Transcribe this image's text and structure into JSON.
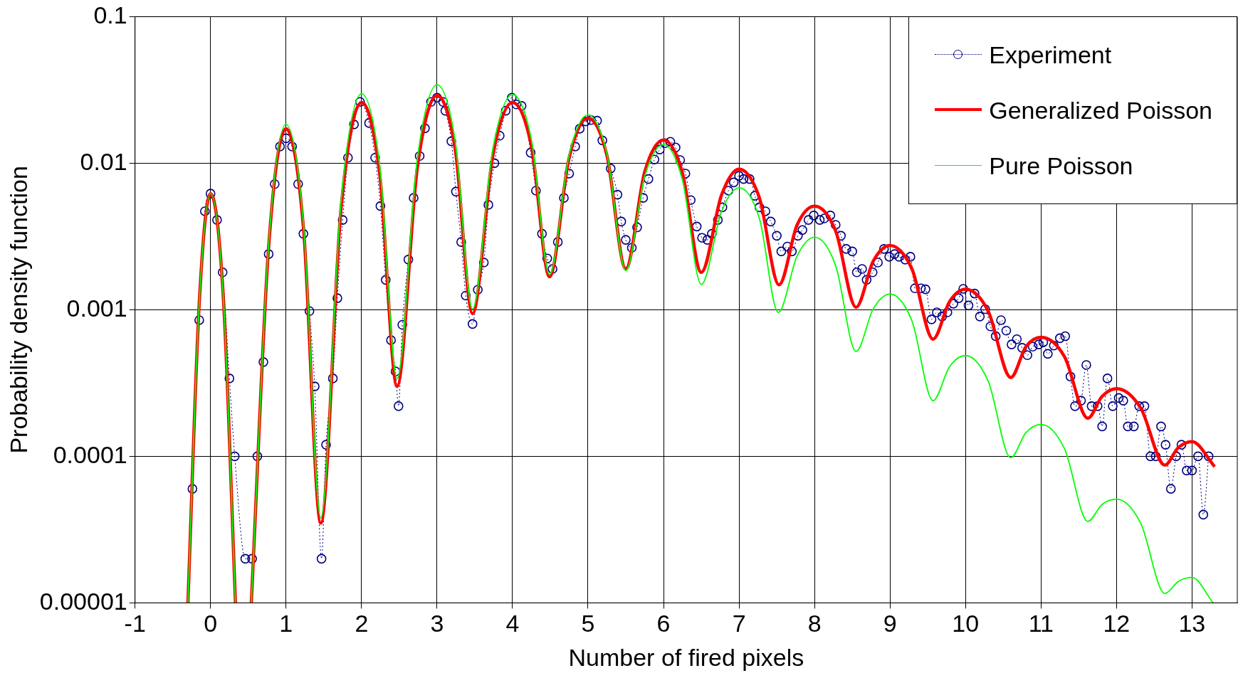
{
  "chart_data": {
    "type": "line",
    "xlabel": "Number of fired pixels",
    "ylabel": "Probability density function",
    "log": "y",
    "grid": true,
    "legend": "top right",
    "xlim": [
      -1,
      13.6
    ],
    "xticks": [
      -1,
      0,
      1,
      2,
      3,
      4,
      5,
      6,
      7,
      8,
      9,
      10,
      11,
      12,
      13
    ],
    "ylim": [
      1e-05,
      0.1
    ],
    "yticks": [
      {
        "value": 1e-05,
        "label": "0.00001"
      },
      0.0001,
      0.001,
      0.01,
      0.1
    ],
    "series": [
      {
        "name": "Experiment",
        "color": "#000080",
        "marker": "circle",
        "line_style": "dotted",
        "x": [
          -0.24,
          -0.15,
          -0.075,
          0,
          0.086,
          0.16,
          0.25,
          0.32,
          0.46,
          0.55,
          0.62,
          0.7,
          0.77,
          0.85,
          0.92,
          1,
          1.08,
          1.16,
          1.23,
          1.31,
          1.38,
          1.47,
          1.53,
          1.62,
          1.68,
          1.75,
          1.82,
          1.9,
          1.98,
          2.1,
          2.18,
          2.25,
          2.32,
          2.39,
          2.45,
          2.49,
          2.54,
          2.62,
          2.69,
          2.77,
          2.84,
          2.92,
          3,
          3.08,
          3.11,
          3.19,
          3.25,
          3.32,
          3.38,
          3.47,
          3.54,
          3.62,
          3.68,
          3.76,
          3.83,
          3.91,
          3.99,
          4.05,
          4.12,
          4.24,
          4.31,
          4.39,
          4.46,
          4.53,
          4.6,
          4.68,
          4.75,
          4.83,
          4.89,
          4.97,
          5.04,
          5.12,
          5.19,
          5.3,
          5.39,
          5.44,
          5.5,
          5.58,
          5.65,
          5.73,
          5.8,
          5.88,
          5.95,
          6.02,
          6.09,
          6.16,
          6.22,
          6.29,
          6.36,
          6.44,
          6.51,
          6.58,
          6.64,
          6.72,
          6.78,
          6.86,
          6.93,
          7,
          7.06,
          7.14,
          7.21,
          7.27,
          7.35,
          7.42,
          7.5,
          7.56,
          7.64,
          7.7,
          7.78,
          7.84,
          7.92,
          7.99,
          8.07,
          8.13,
          8.21,
          8.28,
          8.35,
          8.42,
          8.5,
          8.56,
          8.63,
          8.69,
          8.77,
          8.84,
          8.92,
          8.99,
          9.06,
          9.12,
          9.2,
          9.27,
          9.33,
          9.41,
          9.47,
          9.55,
          9.62,
          9.69,
          9.76,
          9.84,
          9.91,
          9.97,
          10.04,
          10.12,
          10.19,
          10.26,
          10.33,
          10.4,
          10.47,
          10.54,
          10.61,
          10.68,
          10.75,
          10.82,
          10.89,
          10.97,
          11.03,
          11.09,
          11.17,
          11.25,
          11.32,
          11.39,
          11.45,
          11.53,
          11.6,
          11.67,
          11.75,
          11.81,
          11.88,
          11.95,
          12.03,
          12.09,
          12.15,
          12.23,
          12.3,
          12.37,
          12.45,
          12.52,
          12.59,
          12.65,
          12.72,
          12.79,
          12.86,
          12.93,
          13,
          13.08,
          13.15,
          13.22
        ],
        "values": [
          6e-05,
          0.00085,
          0.0047,
          0.0062,
          0.0041,
          0.0018,
          0.00034,
          0.0001,
          2e-05,
          2e-05,
          0.0001,
          0.00044,
          0.0024,
          0.0072,
          0.013,
          0.0148,
          0.013,
          0.0072,
          0.0033,
          0.00098,
          0.0003,
          2e-05,
          0.00012,
          0.00034,
          0.0012,
          0.0041,
          0.0109,
          0.0184,
          0.0262,
          0.0188,
          0.0109,
          0.0051,
          0.0016,
          0.00062,
          0.00038,
          0.00022,
          0.00079,
          0.0022,
          0.0058,
          0.0112,
          0.0173,
          0.0262,
          0.028,
          0.0262,
          0.0228,
          0.0141,
          0.0064,
          0.0029,
          0.00125,
          0.0008,
          0.00137,
          0.0021,
          0.0052,
          0.01,
          0.0154,
          0.0228,
          0.028,
          0.0252,
          0.0246,
          0.0118,
          0.0065,
          0.0033,
          0.00224,
          0.0019,
          0.0029,
          0.0058,
          0.0085,
          0.013,
          0.0172,
          0.0193,
          0.0197,
          0.0195,
          0.0143,
          0.0092,
          0.0061,
          0.004,
          0.003,
          0.00265,
          0.00365,
          0.0058,
          0.0078,
          0.0106,
          0.0124,
          0.0137,
          0.014,
          0.0128,
          0.0105,
          0.0085,
          0.0056,
          0.0037,
          0.0031,
          0.003,
          0.0033,
          0.0041,
          0.005,
          0.0065,
          0.0074,
          0.0082,
          0.0078,
          0.0078,
          0.006,
          0.005,
          0.0047,
          0.004,
          0.0032,
          0.0025,
          0.0027,
          0.0025,
          0.0032,
          0.0035,
          0.0041,
          0.0044,
          0.0041,
          0.0042,
          0.0044,
          0.0038,
          0.0032,
          0.0026,
          0.0025,
          0.0018,
          0.0019,
          0.0016,
          0.0018,
          0.0021,
          0.0026,
          0.0023,
          0.0024,
          0.0023,
          0.0022,
          0.0023,
          0.0014,
          0.0014,
          0.00138,
          0.00086,
          0.00096,
          0.0009,
          0.00096,
          0.0011,
          0.0012,
          0.00139,
          0.00107,
          0.00129,
          0.0009,
          0.00101,
          0.00077,
          0.00066,
          0.00085,
          0.00072,
          0.00058,
          0.00063,
          0.00055,
          0.00049,
          0.00056,
          0.00058,
          0.0006,
          0.0005,
          0.00057,
          0.00064,
          0.00066,
          0.00035,
          0.00022,
          0.00024,
          0.00042,
          0.00022,
          0.00022,
          0.00016,
          0.00034,
          0.00022,
          0.00025,
          0.00024,
          0.00016,
          0.00016,
          0.00022,
          0.00022,
          0.0001,
          0.0001,
          0.00016,
          0.00012,
          6e-05,
          0.0001,
          0.00012,
          8e-05,
          8e-05,
          0.0001,
          4e-05,
          0.0001
        ]
      },
      {
        "name": "Generalized Poisson",
        "color": "#ff0000",
        "marker": "none",
        "line_style": "solid",
        "x": [
          -0.3,
          -0.15,
          0,
          0.17,
          0.33,
          0.43,
          0.54,
          0.77,
          1,
          1.23,
          1.46,
          1.73,
          2,
          2.24,
          2.47,
          2.74,
          3,
          3.24,
          3.47,
          3.74,
          4,
          4.25,
          4.49,
          4.75,
          5,
          5.25,
          5.5,
          5.75,
          6,
          6.25,
          6.5,
          6.77,
          7,
          7.27,
          7.53,
          7.77,
          8,
          8.28,
          8.55,
          8.78,
          9,
          9.29,
          9.57,
          9.79,
          10,
          10.3,
          10.6,
          10.8,
          11,
          11.31,
          11.62,
          11.81,
          12,
          12.32,
          12.64,
          12.82,
          13,
          13.3
        ],
        "values": [
          1e-05,
          0.0011,
          0.0062,
          0.0012,
          1e-05,
          null,
          1e-05,
          0.0027,
          0.0172,
          0.00366,
          3.5e-05,
          0.005,
          0.026,
          0.0085,
          0.0003,
          0.0094,
          0.029,
          0.0125,
          0.00094,
          0.0113,
          0.026,
          0.0131,
          0.00168,
          0.0109,
          0.0203,
          0.0113,
          0.0019,
          0.0087,
          0.0144,
          0.0086,
          0.0018,
          0.0061,
          0.0091,
          0.0058,
          0.00148,
          0.0038,
          0.0051,
          0.00345,
          0.00104,
          0.00216,
          0.00275,
          0.0019,
          0.00063,
          0.00114,
          0.00138,
          0.00098,
          0.000345,
          0.00056,
          0.00065,
          0.00048,
          0.000182,
          0.000257,
          0.00029,
          0.000214,
          8.7e-05,
          0.000115,
          0.000126,
          8.5e-05
        ]
      },
      {
        "name": "Pure Poisson",
        "color": "#00ff00",
        "marker": "none",
        "line_style": "solid",
        "x": [
          -0.3,
          -0.15,
          0,
          0.17,
          0.33,
          0.43,
          0.54,
          0.77,
          1,
          1.23,
          1.46,
          1.73,
          2,
          2.24,
          2.47,
          2.74,
          3,
          3.24,
          3.47,
          3.74,
          4,
          4.25,
          4.49,
          4.75,
          5,
          5.25,
          5.5,
          5.75,
          6,
          6.25,
          6.5,
          6.77,
          7,
          7.27,
          7.52,
          7.77,
          8,
          8.28,
          8.55,
          8.78,
          9,
          9.29,
          9.57,
          9.79,
          10,
          10.3,
          10.6,
          10.8,
          11,
          11.31,
          11.62,
          11.81,
          12,
          12.32,
          12.64,
          12.82,
          13,
          13.28
        ],
        "values": [
          1e-05,
          0.0011,
          0.0062,
          0.0012,
          1e-05,
          null,
          1e-05,
          0.0028,
          0.0184,
          0.0039,
          3.8e-05,
          0.0056,
          0.0298,
          0.0097,
          0.00034,
          0.0108,
          0.0343,
          0.0142,
          0.00101,
          0.0126,
          0.0294,
          0.0145,
          0.00174,
          0.0114,
          0.0214,
          0.0116,
          0.00185,
          0.0081,
          0.0134,
          0.0077,
          0.00149,
          0.0047,
          0.0068,
          0.0042,
          0.00096,
          0.00233,
          0.00313,
          0.002,
          0.00052,
          0.00102,
          0.00128,
          0.00084,
          0.00024,
          0.00041,
          0.000487,
          0.000326,
          9.8e-05,
          0.000145,
          0.000165,
          0.000113,
          3.6e-05,
          4.7e-05,
          5.1e-05,
          3.5e-05,
          1.16e-05,
          1.4e-05,
          1.49e-05,
          1e-05
        ]
      }
    ]
  }
}
